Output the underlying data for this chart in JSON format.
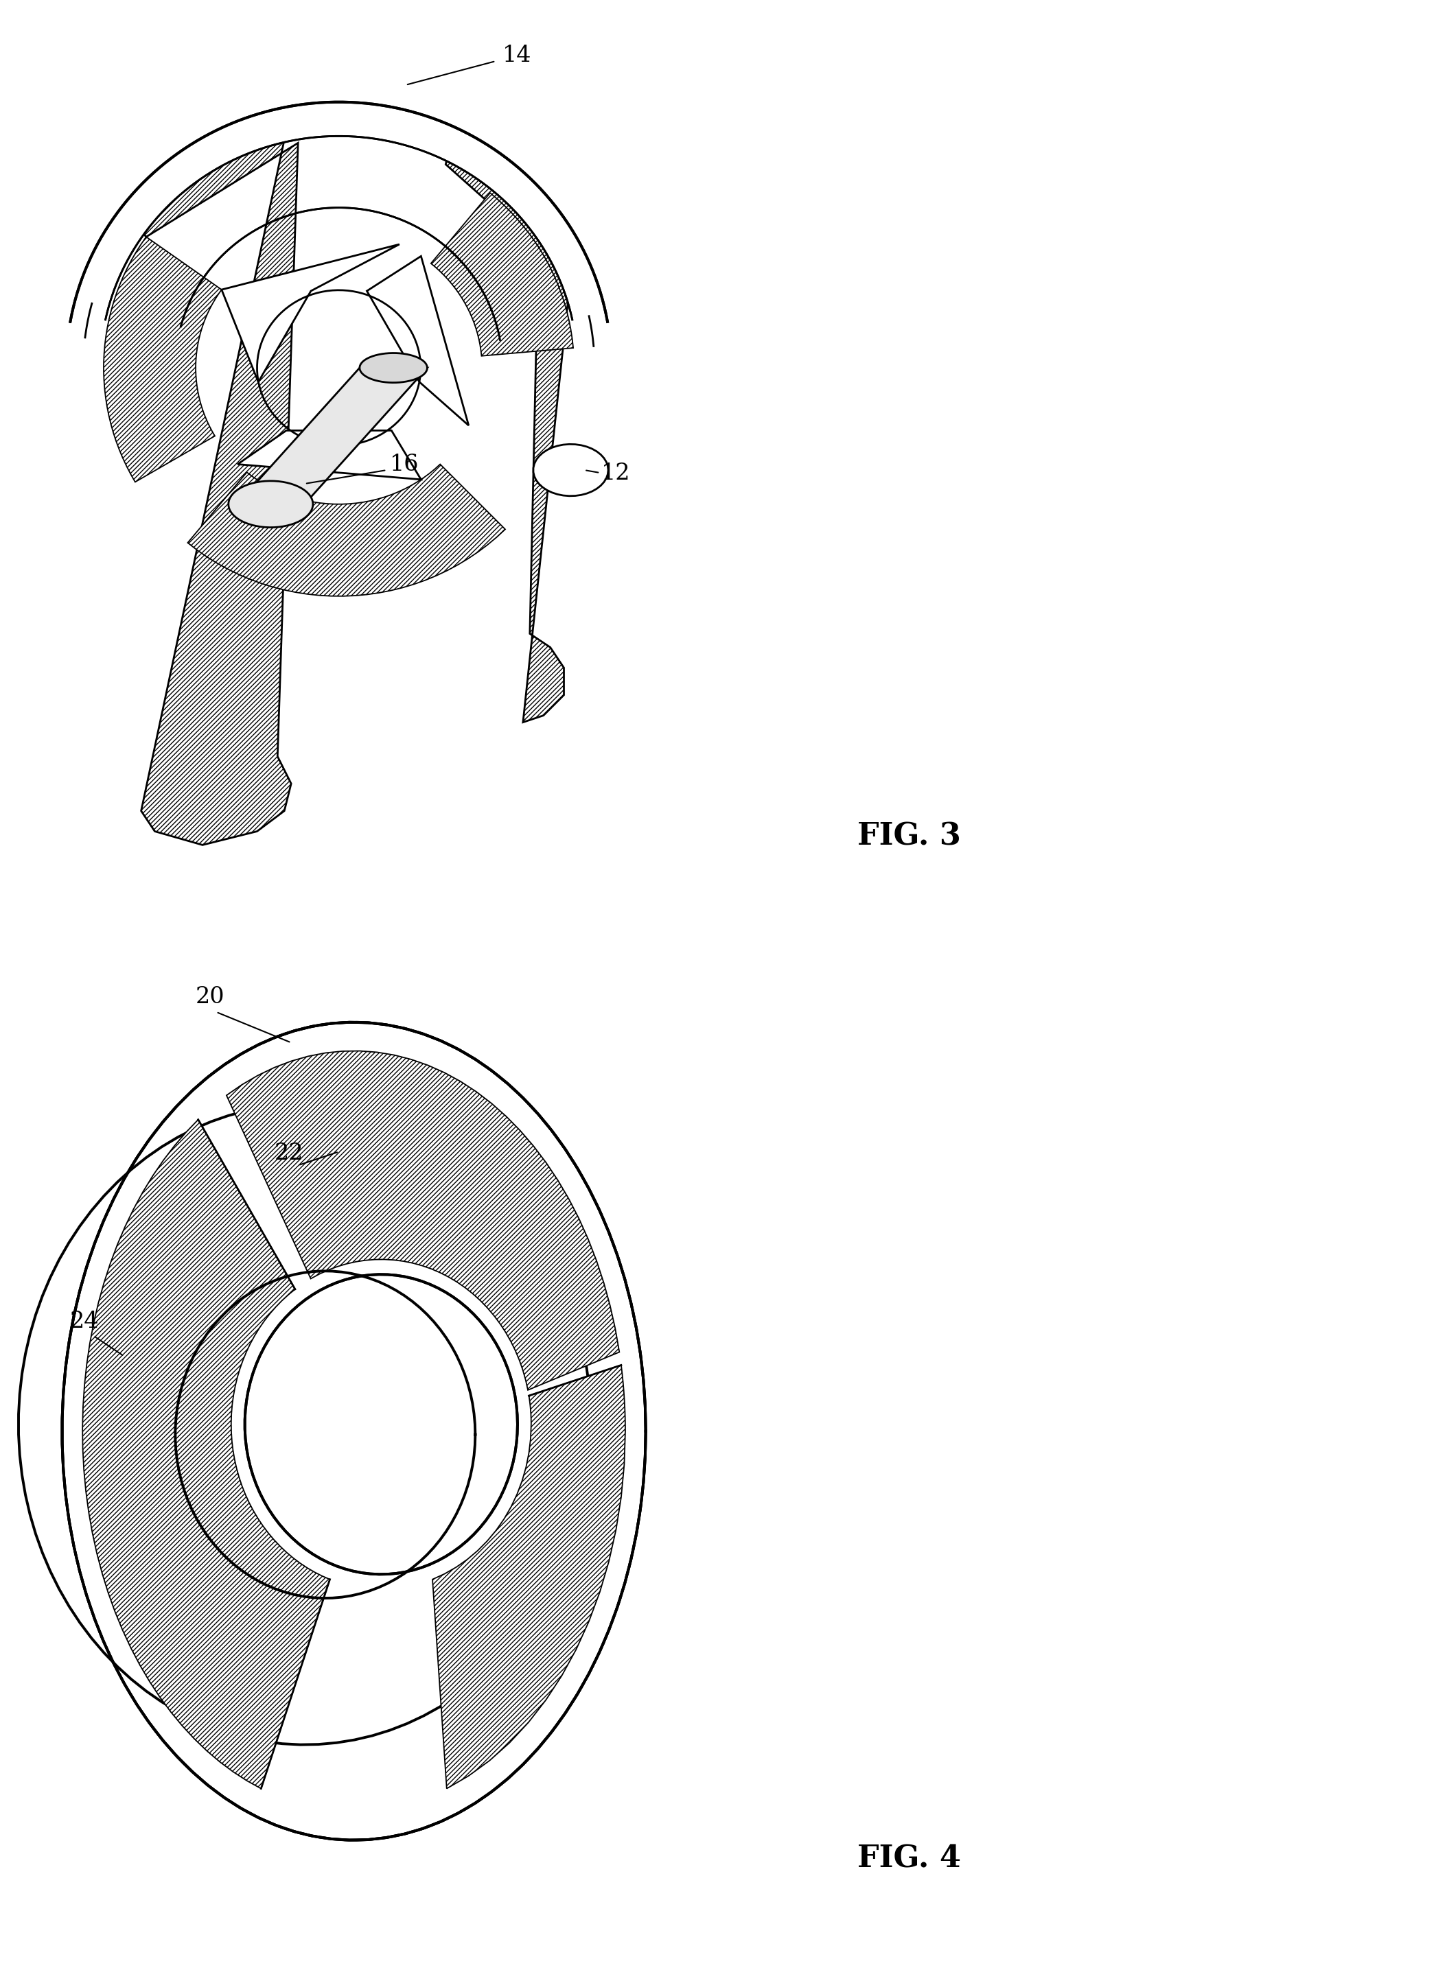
{
  "fig3_label": "FIG. 3",
  "fig4_label": "FIG. 4",
  "label_14": "14",
  "label_16": "16",
  "label_12": "12",
  "label_20": "20",
  "label_22": "22",
  "label_24": "24",
  "bg_color": "#ffffff",
  "line_color": "#000000",
  "title_fontsize": 32,
  "label_fontsize": 24,
  "lw_thick": 2.8,
  "lw_med": 2.0,
  "lw_thin": 1.3
}
